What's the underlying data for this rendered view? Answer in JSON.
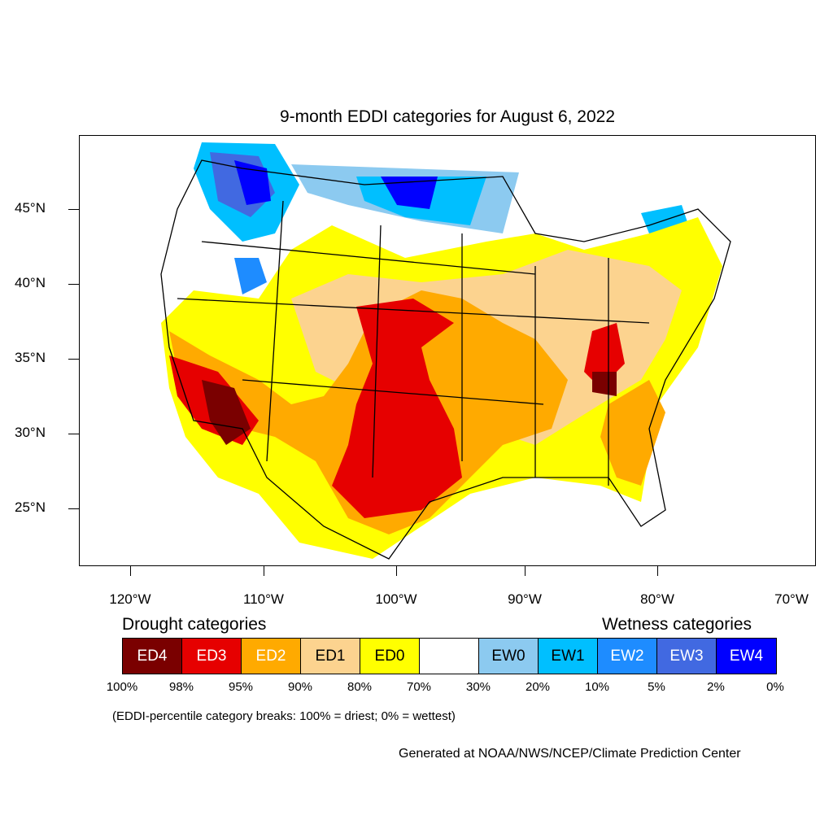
{
  "title": "9-month EDDI categories for August 6, 2022",
  "y_axis": [
    "45°N",
    "40°N",
    "35°N",
    "30°N",
    "25°N"
  ],
  "x_axis": [
    "120°W",
    "110°W",
    "100°W",
    "90°W",
    "80°W",
    "70°W"
  ],
  "legend": {
    "drought_heading": "Drought categories",
    "wetness_heading": "Wetness categories",
    "categories": [
      {
        "label": "ED4",
        "color": "#7a0000",
        "text_color": "#ffffff"
      },
      {
        "label": "ED3",
        "color": "#e60000",
        "text_color": "#ffffff"
      },
      {
        "label": "ED2",
        "color": "#ffaa00",
        "text_color": "#ffffff"
      },
      {
        "label": "ED1",
        "color": "#fcd38f",
        "text_color": "#000000"
      },
      {
        "label": "ED0",
        "color": "#ffff00",
        "text_color": "#000000"
      },
      {
        "label": "",
        "color": "#ffffff",
        "text_color": "#000000"
      },
      {
        "label": "EW0",
        "color": "#8ccaf0",
        "text_color": "#000000"
      },
      {
        "label": "EW1",
        "color": "#00bfff",
        "text_color": "#000000"
      },
      {
        "label": "EW2",
        "color": "#1e8cff",
        "text_color": "#ffffff"
      },
      {
        "label": "EW3",
        "color": "#4169e1",
        "text_color": "#ffffff"
      },
      {
        "label": "EW4",
        "color": "#0000ff",
        "text_color": "#ffffff"
      }
    ],
    "percentiles": [
      "100%",
      "98%",
      "95%",
      "90%",
      "80%",
      "70%",
      "30%",
      "20%",
      "10%",
      "5%",
      "2%",
      "0%"
    ]
  },
  "note": "(EDDI-percentile category breaks: 100% = driest; 0% = wettest)",
  "credit": "Generated at NOAA/NWS/NCEP/Climate Prediction Center"
}
